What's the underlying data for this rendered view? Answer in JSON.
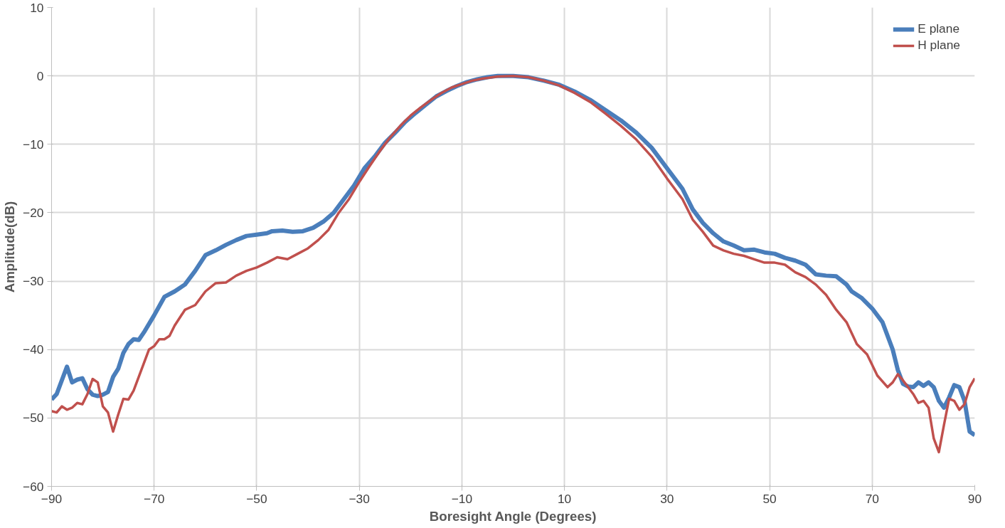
{
  "chart_data": {
    "type": "line",
    "xlabel": "Boresight Angle (Degrees)",
    "ylabel": "Amplitude(dB)",
    "xlim": [
      -90,
      90
    ],
    "xticks": [
      -90,
      -70,
      -50,
      -30,
      -10,
      10,
      30,
      50,
      70,
      90
    ],
    "ylim": [
      -60,
      10
    ],
    "yticks": [
      -60,
      -50,
      -40,
      -30,
      -20,
      -10,
      0,
      10
    ],
    "grid": true,
    "legend": "top right",
    "marker": "none",
    "line_style": "solid",
    "series": [
      {
        "name": "E plane",
        "color": "#4a7ebb",
        "x": [
          -90,
          -89,
          -88,
          -87,
          -86,
          -85,
          -84,
          -83,
          -82,
          -81,
          -80,
          -79,
          -78,
          -77,
          -76,
          -75,
          -74,
          -73,
          -72,
          -70,
          -68,
          -66,
          -64,
          -62,
          -60,
          -58,
          -56,
          -54,
          -52,
          -50,
          -48,
          -47,
          -45,
          -43,
          -41,
          -39,
          -37,
          -35,
          -33,
          -31,
          -29,
          -27,
          -25,
          -23,
          -21,
          -19,
          -17,
          -15,
          -13,
          -11,
          -9,
          -7,
          -5,
          -3,
          0,
          3,
          6,
          9,
          12,
          15,
          18,
          21,
          24,
          27,
          30,
          33,
          35,
          37,
          39,
          41,
          43,
          45,
          47,
          49,
          51,
          53,
          55,
          57,
          59,
          61,
          63,
          65,
          66,
          68,
          70,
          72,
          74,
          75,
          76,
          77,
          78,
          79,
          80,
          81,
          82,
          83,
          84,
          85,
          86,
          87,
          88,
          89,
          90
        ],
        "values": [
          -47.3,
          -46.5,
          -44.5,
          -42.5,
          -44.8,
          -44.4,
          -44.2,
          -45.8,
          -46.6,
          -46.8,
          -46.6,
          -46.2,
          -44,
          -42.8,
          -40.5,
          -39.2,
          -38.5,
          -38.6,
          -37.5,
          -35,
          -32.3,
          -31.5,
          -30.5,
          -28.5,
          -26.2,
          -25.5,
          -24.7,
          -24,
          -23.4,
          -23.2,
          -23,
          -22.7,
          -22.6,
          -22.8,
          -22.7,
          -22.2,
          -21.3,
          -20,
          -18,
          -16,
          -13.5,
          -11.8,
          -9.8,
          -8.3,
          -6.7,
          -5.4,
          -4.2,
          -3,
          -2.2,
          -1.5,
          -0.9,
          -0.5,
          -0.2,
          0,
          0,
          -0.2,
          -0.7,
          -1.3,
          -2.3,
          -3.5,
          -5,
          -6.5,
          -8.3,
          -10.5,
          -13.5,
          -16.5,
          -19.5,
          -21.5,
          -23,
          -24.2,
          -24.8,
          -25.5,
          -25.4,
          -25.8,
          -26,
          -26.6,
          -27,
          -27.6,
          -29,
          -29.2,
          -29.3,
          -30.5,
          -31.5,
          -32.5,
          -34,
          -36,
          -40,
          -43,
          -45,
          -45.4,
          -45.5,
          -44.8,
          -45.3,
          -44.8,
          -45.5,
          -47.5,
          -48.5,
          -47,
          -45.2,
          -45.5,
          -47.5,
          -52,
          -52.5
        ]
      },
      {
        "name": "H plane",
        "color": "#c0504d",
        "x": [
          -90,
          -89,
          -88,
          -87,
          -86,
          -85,
          -84,
          -83,
          -82,
          -81,
          -80,
          -79,
          -78,
          -77,
          -76,
          -75,
          -74,
          -73,
          -72,
          -71,
          -70,
          -69,
          -68,
          -67,
          -66,
          -64,
          -62,
          -60,
          -58,
          -56,
          -54,
          -52,
          -50,
          -48,
          -46,
          -44,
          -42,
          -40,
          -38,
          -36,
          -34,
          -32,
          -30,
          -28,
          -26,
          -24,
          -22,
          -20,
          -18,
          -16,
          -14,
          -12,
          -10,
          -8,
          -6,
          -3,
          0,
          3,
          6,
          9,
          12,
          15,
          18,
          21,
          24,
          27,
          30,
          33,
          35,
          37,
          39,
          41,
          43,
          45,
          47,
          49,
          51,
          53,
          55,
          57,
          59,
          61,
          63,
          65,
          67,
          69,
          71,
          73,
          74,
          75,
          76,
          78,
          79,
          80,
          81,
          82,
          83,
          84,
          85,
          86,
          87,
          88,
          89,
          90
        ],
        "values": [
          -49,
          -49.2,
          -48.3,
          -48.8,
          -48.5,
          -47.8,
          -48,
          -46.5,
          -44.3,
          -44.8,
          -48.3,
          -49.2,
          -52,
          -49.5,
          -47.2,
          -47.3,
          -46,
          -44,
          -42,
          -40,
          -39.5,
          -38.5,
          -38.5,
          -38,
          -36.5,
          -34.2,
          -33.5,
          -31.5,
          -30.3,
          -30.2,
          -29.2,
          -28.5,
          -28,
          -27.3,
          -26.5,
          -26.8,
          -26,
          -25.2,
          -24,
          -22.5,
          -20,
          -18,
          -15.5,
          -13.2,
          -11,
          -9,
          -7.3,
          -5.8,
          -4.6,
          -3.5,
          -2.5,
          -1.7,
          -1.2,
          -0.7,
          -0.4,
          -0.1,
          0,
          -0.2,
          -0.7,
          -1.4,
          -2.5,
          -3.8,
          -5.5,
          -7.3,
          -9.3,
          -11.8,
          -15,
          -18,
          -21,
          -22.8,
          -24.8,
          -25.5,
          -26,
          -26.3,
          -26.8,
          -27.3,
          -27.3,
          -27.6,
          -28.7,
          -29.4,
          -30.5,
          -32,
          -34.2,
          -36,
          -39.2,
          -40.7,
          -43.8,
          -45.5,
          -44.8,
          -43.6,
          -44.5,
          -46.5,
          -47.8,
          -47.5,
          -48.5,
          -53,
          -55,
          -51,
          -47.2,
          -47.5,
          -48.8,
          -48,
          -45.5,
          -44.2
        ]
      }
    ]
  }
}
